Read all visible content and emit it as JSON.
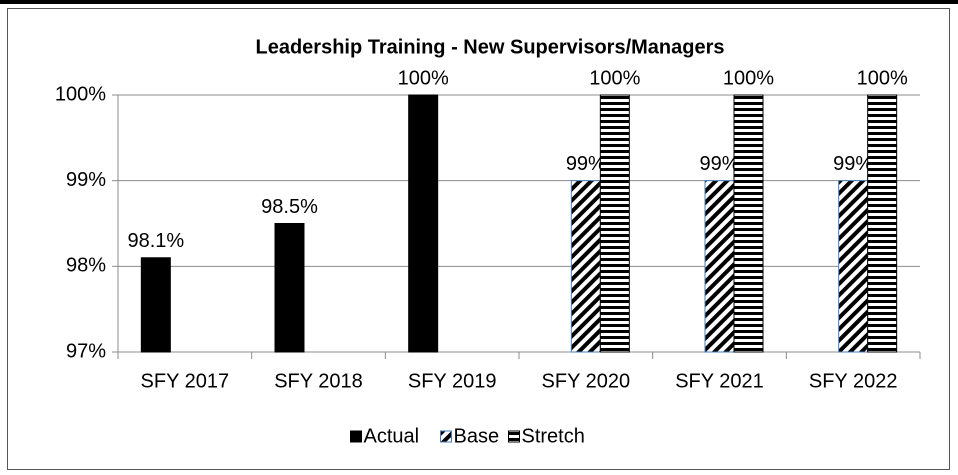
{
  "chart_data": {
    "type": "bar",
    "title": "Leadership Training - New Supervisors/Managers",
    "categories": [
      "SFY 2017",
      "SFY 2018",
      "SFY 2019",
      "SFY 2020",
      "SFY 2021",
      "SFY 2022"
    ],
    "series": [
      {
        "name": "Actual",
        "color": "#000000",
        "pattern": "solid",
        "values": [
          98.1,
          98.5,
          100,
          null,
          null,
          null
        ],
        "value_labels": [
          "98.1%",
          "98.5%",
          "100%",
          null,
          null,
          null
        ]
      },
      {
        "name": "Base",
        "color": "#000000",
        "pattern": "diagonal",
        "values": [
          null,
          null,
          null,
          99,
          99,
          99
        ],
        "value_labels": [
          null,
          null,
          null,
          "99%",
          "99%",
          "99%"
        ]
      },
      {
        "name": "Stretch",
        "color": "#000000",
        "pattern": "horizontal",
        "values": [
          null,
          null,
          null,
          100,
          100,
          100
        ],
        "value_labels": [
          null,
          null,
          null,
          "100%",
          "100%",
          "100%"
        ]
      }
    ],
    "ylim": [
      97,
      100
    ],
    "yticks": [
      {
        "value": 97,
        "label": "97%"
      },
      {
        "value": 98,
        "label": "98%"
      },
      {
        "value": 99,
        "label": "99%"
      },
      {
        "value": 100,
        "label": "100%"
      }
    ],
    "grid": true,
    "legend": "bottom"
  }
}
